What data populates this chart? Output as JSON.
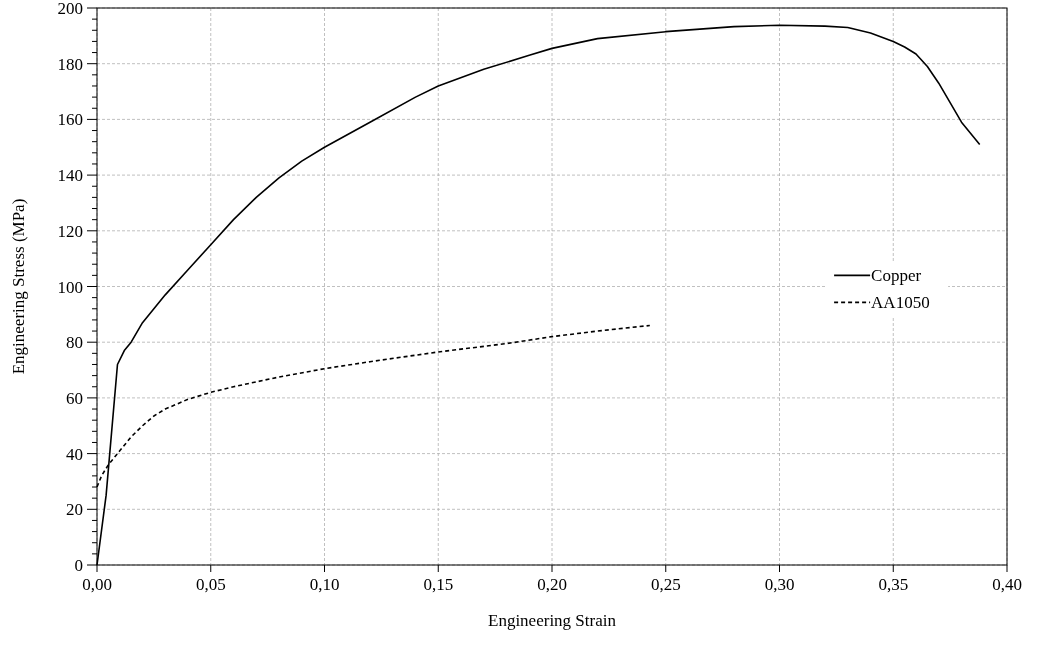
{
  "chart_data": {
    "type": "line",
    "xlabel": "Engineering Strain",
    "ylabel": "Engineering Stress (MPa)",
    "xlim": [
      0,
      0.4
    ],
    "ylim": [
      0,
      200
    ],
    "xticks": [
      {
        "value": 0,
        "label": "0,00"
      },
      {
        "value": 0.05,
        "label": "0,05"
      },
      {
        "value": 0.1,
        "label": "0,10"
      },
      {
        "value": 0.15,
        "label": "0,15"
      },
      {
        "value": 0.2,
        "label": "0,20"
      },
      {
        "value": 0.25,
        "label": "0,25"
      },
      {
        "value": 0.3,
        "label": "0,30"
      },
      {
        "value": 0.35,
        "label": "0,35"
      },
      {
        "value": 0.4,
        "label": "0,40"
      }
    ],
    "yticks": [
      0,
      {
        "value": 4,
        "label": null
      },
      {
        "value": 8,
        "label": null
      },
      {
        "value": 12,
        "label": null
      },
      {
        "value": 16,
        "label": null
      },
      20,
      {
        "value": 24,
        "label": null
      },
      {
        "value": 28,
        "label": null
      },
      {
        "value": 32,
        "label": null
      },
      {
        "value": 36,
        "label": null
      },
      40,
      {
        "value": 44,
        "label": null
      },
      {
        "value": 48,
        "label": null
      },
      {
        "value": 52,
        "label": null
      },
      {
        "value": 56,
        "label": null
      },
      60,
      {
        "value": 64,
        "label": null
      },
      {
        "value": 68,
        "label": null
      },
      {
        "value": 72,
        "label": null
      },
      {
        "value": 76,
        "label": null
      },
      80,
      {
        "value": 84,
        "label": null
      },
      {
        "value": 88,
        "label": null
      },
      {
        "value": 92,
        "label": null
      },
      {
        "value": 96,
        "label": null
      },
      100,
      {
        "value": 104,
        "label": null
      },
      {
        "value": 108,
        "label": null
      },
      {
        "value": 112,
        "label": null
      },
      {
        "value": 116,
        "label": null
      },
      120,
      {
        "value": 124,
        "label": null
      },
      {
        "value": 128,
        "label": null
      },
      {
        "value": 132,
        "label": null
      },
      {
        "value": 136,
        "label": null
      },
      140,
      {
        "value": 144,
        "label": null
      },
      {
        "value": 148,
        "label": null
      },
      {
        "value": 152,
        "label": null
      },
      {
        "value": 156,
        "label": null
      },
      160,
      {
        "value": 164,
        "label": null
      },
      {
        "value": 168,
        "label": null
      },
      {
        "value": 172,
        "label": null
      },
      {
        "value": 176,
        "label": null
      },
      180,
      {
        "value": 184,
        "label": null
      },
      {
        "value": 188,
        "label": null
      },
      {
        "value": 192,
        "label": null
      },
      {
        "value": 196,
        "label": null
      },
      200
    ],
    "grid": true,
    "legend": "right",
    "series": [
      {
        "name": "Copper",
        "color": "#000000",
        "line_style": "solid",
        "x": [
          0,
          0.004,
          0.009,
          0.012,
          0.015,
          0.02,
          0.025,
          0.03,
          0.04,
          0.05,
          0.06,
          0.07,
          0.08,
          0.09,
          0.1,
          0.12,
          0.14,
          0.15,
          0.17,
          0.19,
          0.2,
          0.22,
          0.25,
          0.28,
          0.3,
          0.32,
          0.33,
          0.34,
          0.35,
          0.355,
          0.36,
          0.365,
          0.37,
          0.375,
          0.38,
          0.388
        ],
        "values": [
          0,
          25,
          72,
          77,
          80,
          87,
          92,
          97,
          106,
          115,
          124,
          132,
          139,
          145,
          150,
          159,
          168,
          172,
          178,
          183,
          185.5,
          189,
          191.5,
          193.3,
          193.8,
          193.5,
          193,
          191,
          188,
          186,
          183.5,
          179,
          173,
          166,
          159,
          151
        ]
      },
      {
        "name": "AA1050",
        "color": "#000000",
        "line_style": "dashed",
        "x": [
          0,
          0.002,
          0.005,
          0.01,
          0.015,
          0.02,
          0.025,
          0.03,
          0.04,
          0.05,
          0.06,
          0.08,
          0.1,
          0.12,
          0.15,
          0.18,
          0.2,
          0.22,
          0.243
        ],
        "values": [
          28,
          32,
          36,
          41,
          46,
          50,
          53.5,
          56,
          59.5,
          62,
          64,
          67.5,
          70.5,
          73,
          76.5,
          79.5,
          82,
          84,
          86
        ]
      }
    ]
  }
}
